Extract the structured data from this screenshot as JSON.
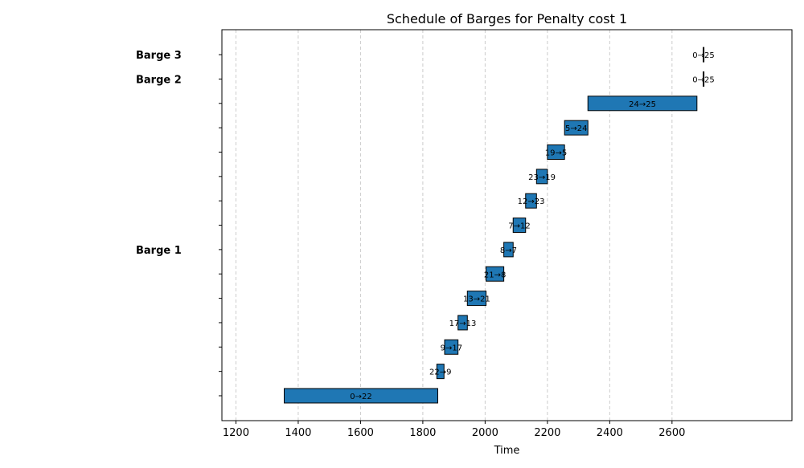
{
  "chart_data": {
    "type": "gantt",
    "title": "Schedule of Barges for Penalty cost 1",
    "xlabel": "Time",
    "ylabel": "",
    "xlim": [
      1155,
      2985
    ],
    "xticks": [
      1200,
      1400,
      1600,
      1800,
      2000,
      2200,
      2400,
      2600
    ],
    "grid": "x-dashed",
    "row_count": 15,
    "barge_labels": [
      {
        "text": "Barge 3",
        "row": 14
      },
      {
        "text": "Barge 2",
        "row": 13
      },
      {
        "text": "Barge 1",
        "row": 6
      }
    ],
    "bars": [
      {
        "label": "0→22",
        "start": 1355,
        "end": 1848,
        "row": 0
      },
      {
        "label": "22→9",
        "start": 1845,
        "end": 1868,
        "row": 1
      },
      {
        "label": "9→17",
        "start": 1870,
        "end": 1913,
        "row": 2
      },
      {
        "label": "17→13",
        "start": 1913,
        "end": 1943,
        "row": 3
      },
      {
        "label": "13→21",
        "start": 1943,
        "end": 2003,
        "row": 4
      },
      {
        "label": "21→8",
        "start": 2003,
        "end": 2060,
        "row": 5
      },
      {
        "label": "8→7",
        "start": 2060,
        "end": 2090,
        "row": 6
      },
      {
        "label": "7→12",
        "start": 2090,
        "end": 2130,
        "row": 7
      },
      {
        "label": "12→23",
        "start": 2130,
        "end": 2165,
        "row": 8
      },
      {
        "label": "23→19",
        "start": 2165,
        "end": 2200,
        "row": 9
      },
      {
        "label": "19→5",
        "start": 2200,
        "end": 2255,
        "row": 10
      },
      {
        "label": "5→24",
        "start": 2255,
        "end": 2330,
        "row": 11
      },
      {
        "label": "24→25",
        "start": 2330,
        "end": 2680,
        "row": 12
      },
      {
        "label": "0→25",
        "start": 2700,
        "end": 2702,
        "row": 13
      },
      {
        "label": "0→25",
        "start": 2700,
        "end": 2702,
        "row": 14
      }
    ],
    "bar_color": "#1f77b4"
  }
}
